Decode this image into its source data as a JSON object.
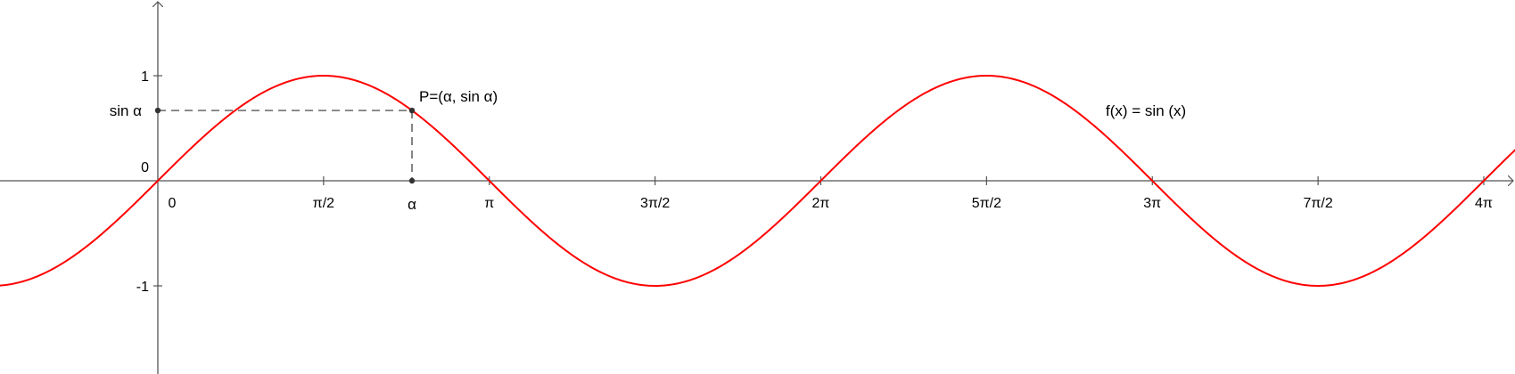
{
  "chart_data": {
    "type": "line",
    "title": "",
    "xlabel": "",
    "ylabel": "",
    "xlim": [
      -0.5236,
      4.2412
    ],
    "ylim": [
      -1.85,
      1.65
    ],
    "x_unit_note": "multiples of pi",
    "grid": false,
    "x_ticks": [
      {
        "value": 0.0,
        "label": "0"
      },
      {
        "value": 0.5,
        "label": "π/2"
      },
      {
        "value": 1.0,
        "label": "π"
      },
      {
        "value": 1.5,
        "label": "3π/2"
      },
      {
        "value": 2.0,
        "label": "2π"
      },
      {
        "value": 2.5,
        "label": "5π/2"
      },
      {
        "value": 3.0,
        "label": "3π"
      },
      {
        "value": 3.5,
        "label": "7π/2"
      },
      {
        "value": 4.0,
        "label": "4π"
      }
    ],
    "y_ticks": [
      {
        "value": 1,
        "label": "1"
      },
      {
        "value": 0,
        "label": "0"
      },
      {
        "value": -1,
        "label": "-1"
      }
    ],
    "series": [
      {
        "name": "f(x) = sin (x)",
        "function": "sin",
        "color": "#ff0000"
      }
    ],
    "point": {
      "label": "P=(α, sin α)",
      "x_over_pi": 0.7667,
      "x_label": "α",
      "y_label": "sin α"
    },
    "function_label": "f(x) = sin (x)"
  }
}
